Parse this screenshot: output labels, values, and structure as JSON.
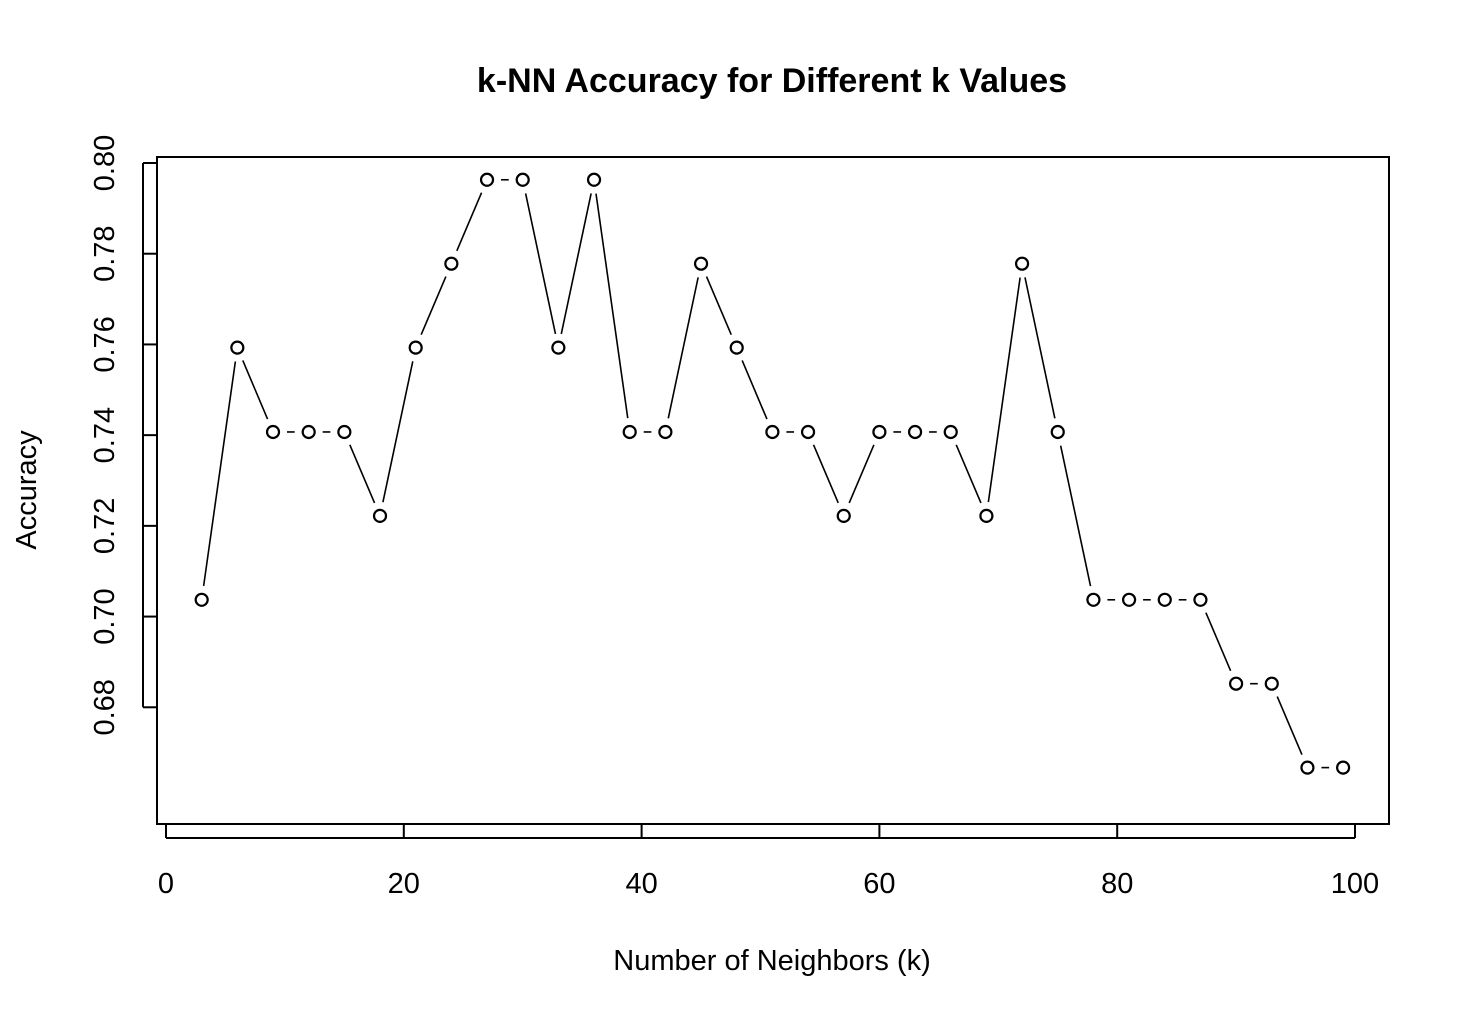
{
  "chart_data": {
    "type": "line",
    "title": "k-NN Accuracy for Different k Values",
    "xlabel": "Number of Neighbors (k)",
    "ylabel": "Accuracy",
    "xlim": [
      0,
      100
    ],
    "ylim": [
      0.66,
      0.8
    ],
    "x_ticks": [
      0,
      20,
      40,
      60,
      80,
      100
    ],
    "y_ticks": [
      0.68,
      0.7,
      0.72,
      0.74,
      0.76,
      0.78,
      0.8
    ],
    "x_tick_labels": [
      "0",
      "20",
      "40",
      "60",
      "80",
      "100"
    ],
    "y_tick_labels": [
      "0.68",
      "0.70",
      "0.72",
      "0.74",
      "0.76",
      "0.78",
      "0.80"
    ],
    "grid": false,
    "legend": "none",
    "marker": "open-circle",
    "line_color": "#000000",
    "series": [
      {
        "x": [
          3,
          6,
          9,
          12,
          15,
          18,
          21,
          24,
          27,
          30,
          33,
          36,
          39,
          42,
          45,
          48,
          51,
          54,
          57,
          60,
          63,
          66,
          69,
          72,
          75,
          78,
          81,
          84,
          87,
          90,
          93,
          96,
          99
        ],
        "values": [
          0.7037,
          0.7593,
          0.7407,
          0.7407,
          0.7407,
          0.7222,
          0.7593,
          0.7778,
          0.7963,
          0.7963,
          0.7593,
          0.7963,
          0.7407,
          0.7407,
          0.7778,
          0.7593,
          0.7407,
          0.7407,
          0.7222,
          0.7407,
          0.7407,
          0.7407,
          0.7222,
          0.7778,
          0.7407,
          0.7037,
          0.7037,
          0.7037,
          0.7037,
          0.6852,
          0.6852,
          0.6667,
          0.6667
        ]
      }
    ]
  }
}
